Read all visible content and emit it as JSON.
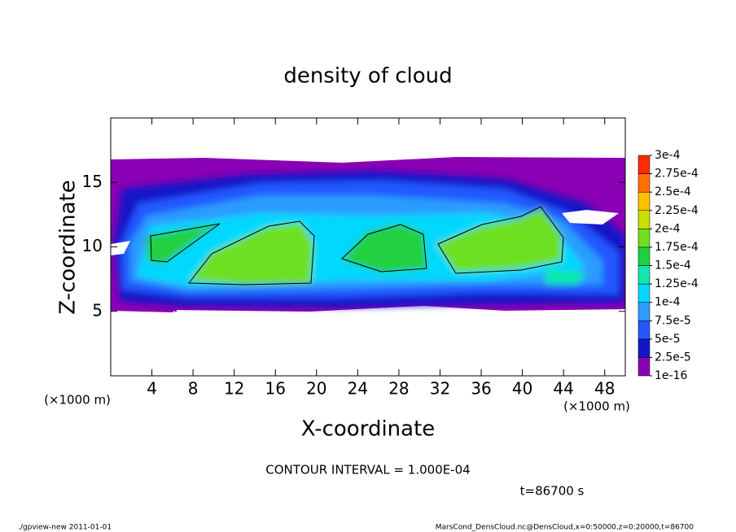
{
  "chart_data": {
    "type": "contour",
    "title": "density of cloud",
    "xlabel": "X-coordinate",
    "ylabel": "Z-coordinate",
    "xunit": "(×1000 m)",
    "yunit": "(×1000 m)",
    "xlim": [
      0,
      50
    ],
    "xticks": [
      4,
      8,
      12,
      16,
      20,
      24,
      28,
      32,
      36,
      40,
      44,
      48
    ],
    "ylim": [
      0,
      20
    ],
    "yticks": [
      5,
      10,
      15
    ],
    "colorbar_ticks": [
      {
        "value": 1e-16,
        "label": "1e-16"
      },
      {
        "value": 2.5e-05,
        "label": "2.5e-5"
      },
      {
        "value": 5e-05,
        "label": "5e-5"
      },
      {
        "value": 7.5e-05,
        "label": "7.5e-5"
      },
      {
        "value": 0.0001,
        "label": "1e-4"
      },
      {
        "value": 0.000125,
        "label": "1.25e-4"
      },
      {
        "value": 0.00015,
        "label": "1.5e-4"
      },
      {
        "value": 0.000175,
        "label": "1.75e-4"
      },
      {
        "value": 0.0002,
        "label": "2e-4"
      },
      {
        "value": 0.000225,
        "label": "2.25e-4"
      },
      {
        "value": 0.00025,
        "label": "2.5e-4"
      },
      {
        "value": 0.000275,
        "label": "2.75e-4"
      },
      {
        "value": 0.0003,
        "label": "3e-4"
      }
    ],
    "colors": [
      "#8a00b4",
      "#1414c8",
      "#2458ff",
      "#2c9cff",
      "#00d8ff",
      "#10e8b0",
      "#20d040",
      "#6ee020",
      "#c8e000",
      "#ffc000",
      "#ff7000",
      "#ff2a00"
    ],
    "contour_interval": "CONTOUR INTERVAL = 1.000E-04",
    "time": "t=86700 s",
    "footer_left": "./gpview-new  2011-01-01",
    "footer_right": "MarsCond_DensCloud.nc@DensCloud,x=0:50000,z=0:20000,t=86700"
  }
}
